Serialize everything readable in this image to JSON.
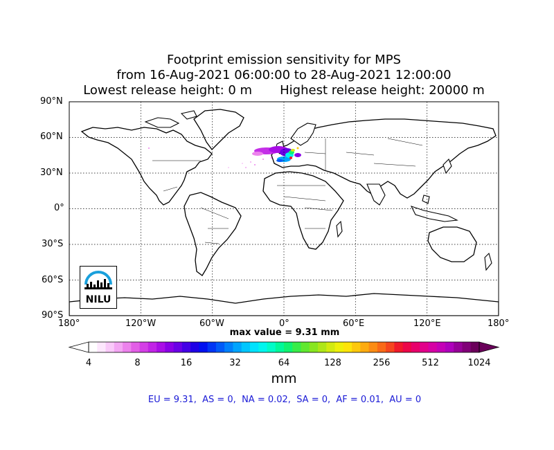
{
  "title": {
    "line1": "Footprint emission sensitivity for MPS",
    "line2": "from 16-Aug-2021 06:00:00 to 28-Aug-2021 12:00:00",
    "line3": "Lowest release height: 0 m       Highest release height: 20000 m"
  },
  "map": {
    "projection": "equirectangular",
    "lat_ticks": [
      "90°N",
      "60°N",
      "30°N",
      "0°",
      "30°S",
      "60°S",
      "90°S"
    ],
    "lon_ticks": [
      "180°",
      "120°W",
      "60°W",
      "0°",
      "60°E",
      "120°E",
      "180°"
    ],
    "grid": "dotted",
    "footprint_region": "North Atlantic / Western Europe",
    "coastline_color": "#000000"
  },
  "max_value_label": "max value = 9.31 mm",
  "colorbar": {
    "ticks": [
      "4",
      "8",
      "16",
      "32",
      "64",
      "128",
      "256",
      "512",
      "1024"
    ],
    "unit": "mm",
    "colors": [
      "#ffffff",
      "#fde7fd",
      "#f9c9f9",
      "#f3a6f3",
      "#ec82ec",
      "#e25ee6",
      "#d43fe6",
      "#c124e6",
      "#a90ee6",
      "#8a00e6",
      "#6a00e6",
      "#4400e6",
      "#1f00e6",
      "#0010f0",
      "#0035f5",
      "#005af8",
      "#0080fb",
      "#00a4fd",
      "#00c6fe",
      "#00e2fe",
      "#00f5ee",
      "#00fbc8",
      "#00f89a",
      "#10f270",
      "#38ec48",
      "#60e830",
      "#88e620",
      "#aee618",
      "#d2ea10",
      "#eef00a",
      "#fde40a",
      "#fdc80c",
      "#fdab10",
      "#fb8c14",
      "#f96a18",
      "#f5461e",
      "#f01a2a",
      "#ec0648",
      "#e8006a",
      "#e2008a",
      "#d600a4",
      "#c400b6",
      "#ae00bc",
      "#960098",
      "#800077",
      "#6a005a"
    ]
  },
  "regions_text": "EU = 9.31,  AS = 0,  NA = 0.02,  SA = 0,  AF = 0.01,  AU = 0",
  "logo": {
    "text": "NILU"
  }
}
